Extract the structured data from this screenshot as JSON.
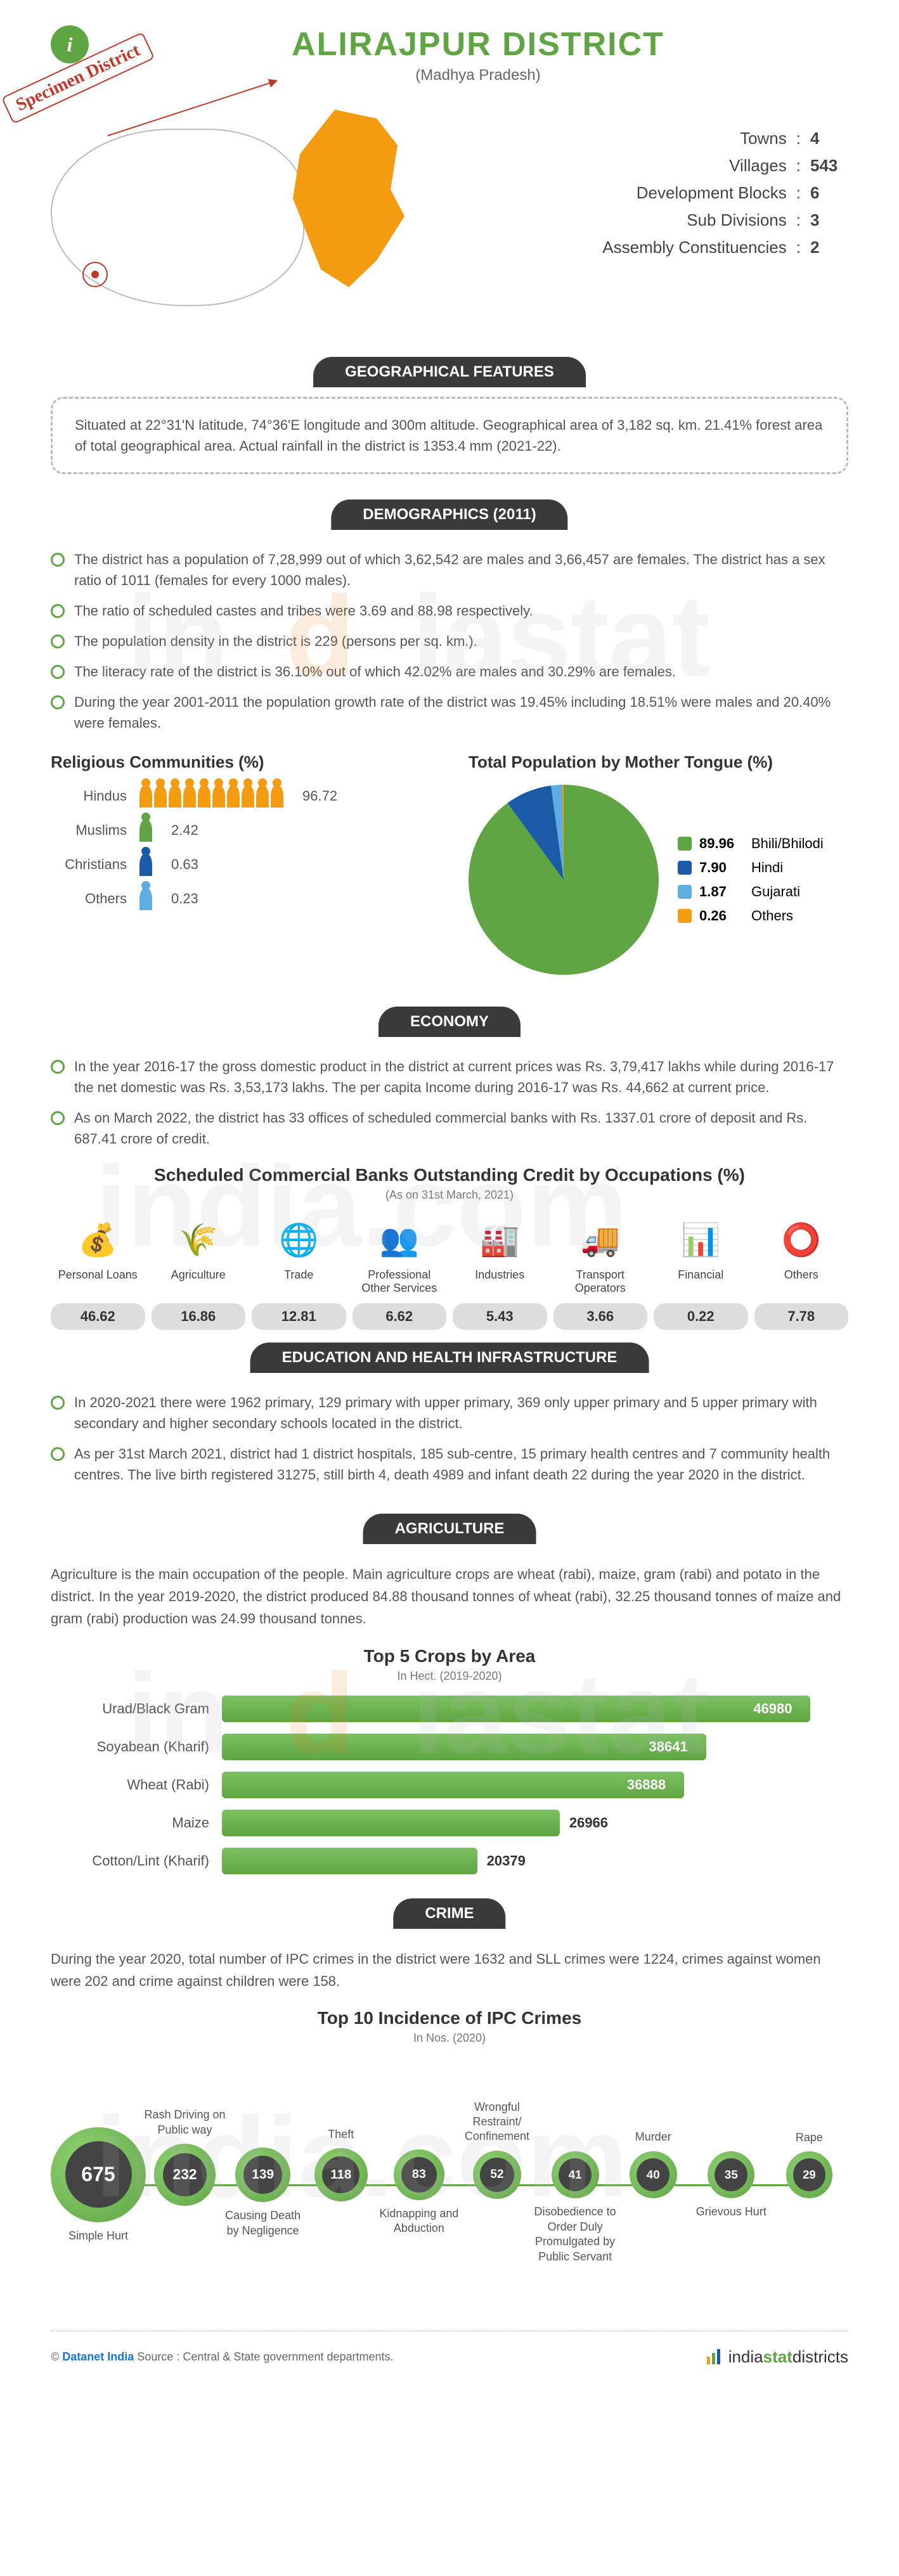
{
  "header": {
    "title": "ALIRAJPUR DISTRICT",
    "subtitle": "(Madhya Pradesh)",
    "specimen": "Specimen District"
  },
  "stats": [
    {
      "label": "Towns",
      "value": "4"
    },
    {
      "label": "Villages",
      "value": "543"
    },
    {
      "label": "Development Blocks",
      "value": "6"
    },
    {
      "label": "Sub Divisions",
      "value": "3"
    },
    {
      "label": "Assembly Constituencies",
      "value": "2"
    }
  ],
  "sections": {
    "geo": {
      "title": "GEOGRAPHICAL FEATURES",
      "text": "Situated at 22°31'N latitude, 74°36'E longitude and 300m altitude. Geographical area of 3,182 sq. km. 21.41% forest area of total geographical area. Actual rainfall in the district is 1353.4 mm (2021-22)."
    },
    "demo": {
      "title": "DEMOGRAPHICS (2011)"
    },
    "econ": {
      "title": "ECONOMY"
    },
    "edu": {
      "title": "EDUCATION AND HEALTH INFRASTRUCTURE"
    },
    "agri": {
      "title": "AGRICULTURE"
    },
    "crime": {
      "title": "CRIME"
    }
  },
  "demoBullets": [
    "The district has a population of 7,28,999 out of which 3,62,542 are males and 3,66,457 are females. The district has a sex ratio of 1011 (females for every 1000 males).",
    "The ratio of scheduled castes and tribes were 3.69 and 88.98 respectively.",
    "The population density in the district is 229 (persons per sq. km.).",
    "The literacy rate of the district is 36.10% out of which 42.02% are males and 30.29% are females.",
    "During the year 2001-2011 the population growth rate of the district was 19.45% including 18.51% were males and 20.40% were females."
  ],
  "religious": {
    "title": "Religious Communities (%)",
    "items": [
      {
        "label": "Hindus",
        "value": "96.72",
        "color": "#f39c12",
        "count": 10
      },
      {
        "label": "Muslims",
        "value": "2.42",
        "color": "#5fa544",
        "count": 1
      },
      {
        "label": "Christians",
        "value": "0.63",
        "color": "#1b5aa6",
        "count": 1
      },
      {
        "label": "Others",
        "value": "0.23",
        "color": "#5dade2",
        "count": 1
      }
    ]
  },
  "motherTongue": {
    "title": "Total Population by Mother Tongue (%)",
    "items": [
      {
        "label": "Bhili/Bhilodi",
        "value": "89.96",
        "color": "#5fa544"
      },
      {
        "label": "Hindi",
        "value": "7.90",
        "color": "#1b5aa6"
      },
      {
        "label": "Gujarati",
        "value": "1.87",
        "color": "#5dade2"
      },
      {
        "label": "Others",
        "value": "0.26",
        "color": "#f39c12"
      }
    ]
  },
  "econBullets": [
    "In the year 2016-17 the gross domestic product in the district at current prices was Rs. 3,79,417 lakhs while during 2016-17 the net domestic was Rs. 3,53,173 lakhs. The per capita Income during 2016-17 was Rs. 44,662 at current price.",
    "As on March 2022, the district has 33 offices of scheduled commercial banks with Rs. 1337.01 crore of deposit and Rs. 687.41 crore of credit."
  ],
  "credit": {
    "title": "Scheduled Commercial Banks Outstanding Credit by Occupations (%)",
    "sub": "(As on 31st March, 2021)",
    "items": [
      {
        "label": "Personal Loans",
        "value": "46.62",
        "icon": "💰"
      },
      {
        "label": "Agriculture",
        "value": "16.86",
        "icon": "🌾"
      },
      {
        "label": "Trade",
        "value": "12.81",
        "icon": "🌐"
      },
      {
        "label": "Professional Other Services",
        "value": "6.62",
        "icon": "👥"
      },
      {
        "label": "Industries",
        "value": "5.43",
        "icon": "🏭"
      },
      {
        "label": "Transport Operators",
        "value": "3.66",
        "icon": "🚚"
      },
      {
        "label": "Financial",
        "value": "0.22",
        "icon": "📊"
      },
      {
        "label": "Others",
        "value": "7.78",
        "icon": "⭕"
      }
    ]
  },
  "eduBullets": [
    "In 2020-2021 there were 1962 primary, 129 primary with upper primary, 369 only upper primary and 5 upper primary with secondary and higher secondary schools located in the district.",
    "As per 31st March 2021, district had 1 district hospitals, 185 sub-centre, 15 primary health centres and 7 community health centres. The live birth registered 31275, still birth 4, death 4989 and infant death 22 during the year 2020 in the district."
  ],
  "agriText": "Agriculture is the main occupation of the people. Main agriculture crops are wheat (rabi), maize, gram (rabi) and potato in the district. In the year 2019-2020, the district produced 84.88 thousand tonnes of wheat (rabi), 32.25 thousand tonnes of maize and gram (rabi) production was 24.99 thousand tonnes.",
  "crops": {
    "title": "Top 5 Crops by Area",
    "sub": "In Hect. (2019-2020)",
    "max": 50000,
    "items": [
      {
        "label": "Urad/Black Gram",
        "value": 46980
      },
      {
        "label": "Soyabean (Kharif)",
        "value": 38641
      },
      {
        "label": "Wheat (Rabi)",
        "value": 36888
      },
      {
        "label": "Maize",
        "value": 26966
      },
      {
        "label": "Cotton/Lint (Kharif)",
        "value": 20379
      }
    ]
  },
  "crimeText": "During the year 2020, total number of IPC crimes in the district were 1632 and SLL crimes were 1224, crimes against women were 202 and crime against children were 158.",
  "crimes": {
    "title": "Top 10 Incidence of IPC Crimes",
    "sub": "In Nos. (2020)",
    "items": [
      {
        "label": "Simple Hurt",
        "value": 675,
        "pos": "bottom"
      },
      {
        "label": "Rash Driving on Public way",
        "value": 232,
        "pos": "top"
      },
      {
        "label": "Causing Death by Negligence",
        "value": 139,
        "pos": "bottom"
      },
      {
        "label": "Theft",
        "value": 118,
        "pos": "top"
      },
      {
        "label": "Kidnapping and Abduction",
        "value": 83,
        "pos": "bottom"
      },
      {
        "label": "Wrongful Restraint/ Confinement",
        "value": 52,
        "pos": "top"
      },
      {
        "label": "Disobedience to Order Duly Promulgated by Public Servant",
        "value": 41,
        "pos": "bottom"
      },
      {
        "label": "Murder",
        "value": 40,
        "pos": "top"
      },
      {
        "label": "Grievous Hurt",
        "value": 35,
        "pos": "bottom"
      },
      {
        "label": "Rape",
        "value": 29,
        "pos": "top"
      }
    ]
  },
  "footer": {
    "copyright": "© ",
    "brand": "Datanet India",
    "source": "  Source : Central & State government departments.",
    "logo_prefix": "india",
    "logo_mid": "stat",
    "logo_suffix": "districts"
  },
  "colors": {
    "green": "#5fa544",
    "dark": "#3a3a3a",
    "orange": "#f39c12"
  }
}
